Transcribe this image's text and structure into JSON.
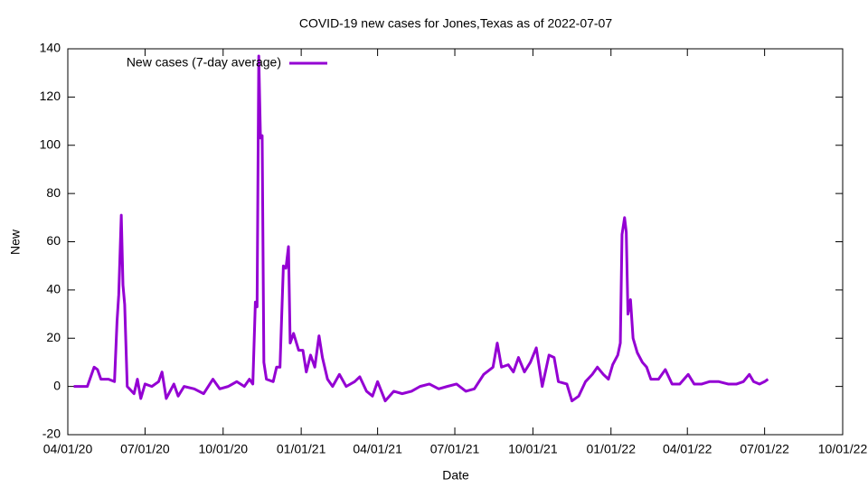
{
  "chart_data": {
    "type": "line",
    "title": "COVID-19 new cases for Jones,Texas as of 2022-07-07",
    "x_label": "Date",
    "y_label": "New",
    "legend": "top-left",
    "x": [
      "2020-04-08",
      "2020-04-24",
      "2020-05-02",
      "2020-05-06",
      "2020-05-10",
      "2020-05-19",
      "2020-05-26",
      "2020-05-29",
      "2020-05-31",
      "2020-06-03",
      "2020-06-05",
      "2020-06-07",
      "2020-06-10",
      "2020-06-18",
      "2020-06-22",
      "2020-06-26",
      "2020-07-01",
      "2020-07-09",
      "2020-07-17",
      "2020-07-21",
      "2020-07-26",
      "2020-08-04",
      "2020-08-09",
      "2020-08-16",
      "2020-08-28",
      "2020-09-08",
      "2020-09-19",
      "2020-09-27",
      "2020-10-07",
      "2020-10-17",
      "2020-10-26",
      "2020-11-01",
      "2020-11-05",
      "2020-11-08",
      "2020-11-10",
      "2020-11-12",
      "2020-11-14",
      "2020-11-16",
      "2020-11-18",
      "2020-11-21",
      "2020-11-29",
      "2020-12-03",
      "2020-12-07",
      "2020-12-11",
      "2020-12-14",
      "2020-12-17",
      "2020-12-19",
      "2020-12-23",
      "2020-12-29",
      "2021-01-03",
      "2021-01-07",
      "2021-01-12",
      "2021-01-17",
      "2021-01-22",
      "2021-01-26",
      "2021-02-01",
      "2021-02-07",
      "2021-02-15",
      "2021-02-23",
      "2021-03-05",
      "2021-03-11",
      "2021-03-19",
      "2021-03-26",
      "2021-04-01",
      "2021-04-10",
      "2021-04-20",
      "2021-04-30",
      "2021-05-11",
      "2021-05-21",
      "2021-06-01",
      "2021-06-12",
      "2021-06-22",
      "2021-07-03",
      "2021-07-14",
      "2021-07-24",
      "2021-08-04",
      "2021-08-15",
      "2021-08-20",
      "2021-08-25",
      "2021-09-02",
      "2021-09-08",
      "2021-09-14",
      "2021-09-21",
      "2021-09-28",
      "2021-10-05",
      "2021-10-12",
      "2021-10-20",
      "2021-10-26",
      "2021-10-31",
      "2021-11-10",
      "2021-11-16",
      "2021-11-24",
      "2021-12-02",
      "2021-12-10",
      "2021-12-16",
      "2021-12-23",
      "2021-12-29",
      "2022-01-03",
      "2022-01-09",
      "2022-01-12",
      "2022-01-14",
      "2022-01-17",
      "2022-01-19",
      "2022-01-21",
      "2022-01-24",
      "2022-01-27",
      "2022-02-01",
      "2022-02-07",
      "2022-02-12",
      "2022-02-17",
      "2022-02-26",
      "2022-03-06",
      "2022-03-14",
      "2022-03-23",
      "2022-04-02",
      "2022-04-09",
      "2022-04-18",
      "2022-04-27",
      "2022-05-08",
      "2022-05-19",
      "2022-05-29",
      "2022-06-06",
      "2022-06-13",
      "2022-06-18",
      "2022-06-25",
      "2022-07-01",
      "2022-07-05"
    ],
    "series": [
      {
        "name": "New cases (7-day average)",
        "color": "#9400d3",
        "values": [
          0,
          0,
          8,
          7,
          3,
          3,
          2,
          27,
          38,
          71,
          42,
          34,
          0,
          -3,
          3,
          -5,
          1,
          0,
          2,
          6,
          -5,
          1,
          -4,
          0,
          -1,
          -3,
          3,
          -1,
          0,
          2,
          0,
          3,
          1,
          35,
          33,
          137,
          103,
          104,
          10,
          3,
          2,
          8,
          8,
          50,
          49,
          58,
          18,
          22,
          15,
          15,
          6,
          13,
          8,
          21,
          12,
          3,
          0,
          5,
          0,
          2,
          4,
          -2,
          -4,
          2,
          -6,
          -2,
          -3,
          -2,
          0,
          1,
          -1,
          0,
          1,
          -2,
          -1,
          5,
          8,
          18,
          8,
          9,
          6,
          12,
          6,
          10,
          16,
          0,
          13,
          12,
          2,
          1,
          -6,
          -4,
          2,
          5,
          8,
          5,
          3,
          9,
          13,
          18,
          63,
          70,
          64,
          30,
          36,
          20,
          14,
          10,
          8,
          3,
          3,
          7,
          1,
          1,
          5,
          1,
          1,
          2,
          2,
          1,
          1,
          2,
          5,
          2,
          1,
          2,
          3
        ]
      }
    ],
    "xlim": [
      "2020-04-01",
      "2022-10-01"
    ],
    "xticks": [
      {
        "value": "2020-04-01",
        "label": "04/01/20"
      },
      {
        "value": "2020-07-01",
        "label": "07/01/20"
      },
      {
        "value": "2020-10-01",
        "label": "10/01/20"
      },
      {
        "value": "2021-01-01",
        "label": "01/01/21"
      },
      {
        "value": "2021-04-01",
        "label": "04/01/21"
      },
      {
        "value": "2021-07-01",
        "label": "07/01/21"
      },
      {
        "value": "2021-10-01",
        "label": "10/01/21"
      },
      {
        "value": "2022-01-01",
        "label": "01/01/22"
      },
      {
        "value": "2022-04-01",
        "label": "04/01/22"
      },
      {
        "value": "2022-07-01",
        "label": "07/01/22"
      },
      {
        "value": "2022-10-01",
        "label": "10/01/22"
      }
    ],
    "ylim": [
      -20,
      140
    ],
    "yticks": [
      -20,
      0,
      20,
      40,
      60,
      80,
      100,
      120,
      140
    ]
  }
}
